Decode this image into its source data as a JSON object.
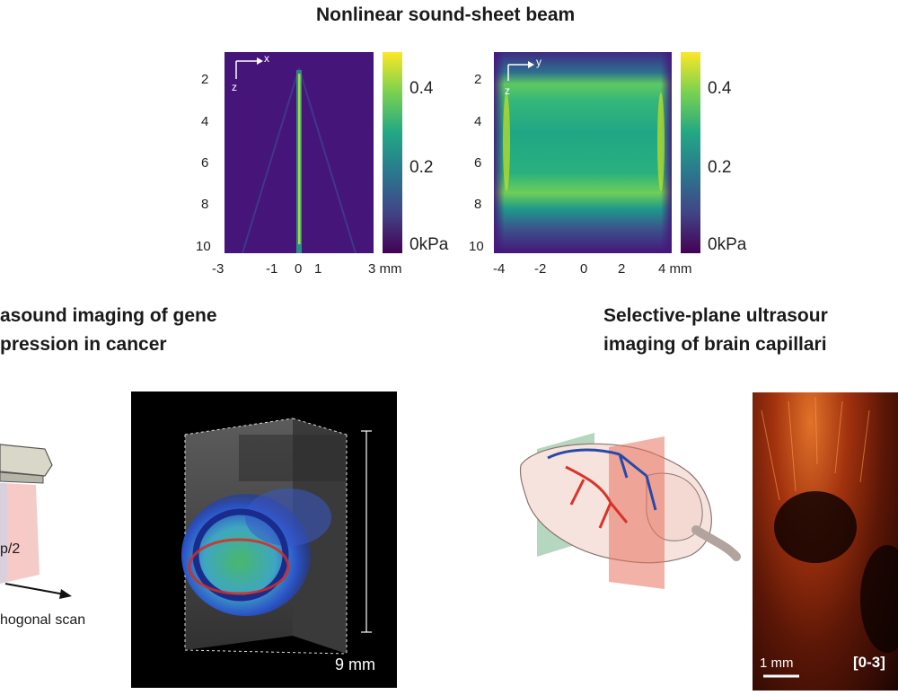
{
  "top": {
    "title": "Nonlinear sound-sheet beam",
    "left_plot": {
      "axis_x": "x",
      "axis_z": "z",
      "y_ticks": [
        "2",
        "4",
        "6",
        "8",
        "10"
      ],
      "x_ticks": [
        "-3",
        "-1",
        "0",
        "1",
        "3 mm"
      ]
    },
    "left_colorbar": {
      "ticks": [
        "0.4",
        "0.2",
        "0kPa"
      ]
    },
    "right_plot": {
      "axis_x": "y",
      "axis_z": "z",
      "y_ticks": [
        "2",
        "4",
        "6",
        "8",
        "10"
      ],
      "x_ticks": [
        "-4",
        "-2",
        "0",
        "2",
        "4 mm"
      ]
    },
    "right_colorbar": {
      "ticks": [
        "0.4",
        "0.2",
        "0kPa"
      ]
    }
  },
  "left_section": {
    "title_line1": "asound imaging of gene",
    "title_line2": "pression in cancer",
    "probe_label": "p/2",
    "scan_label": "hogonal scan",
    "scale_label": "9 mm"
  },
  "right_section": {
    "title_line1": "Selective-plane ultrasour",
    "title_line2": "imaging of brain capillari",
    "scale_label": "1 mm",
    "range_label": "[0-3]"
  },
  "colors": {
    "viridis_low": "#440154",
    "viridis_mid": "#21918c",
    "viridis_high": "#fde725",
    "accent_red": "#d8342a",
    "accent_blue": "#2849a8",
    "plane_green": "#79b58a",
    "plane_red": "#e8735f"
  }
}
